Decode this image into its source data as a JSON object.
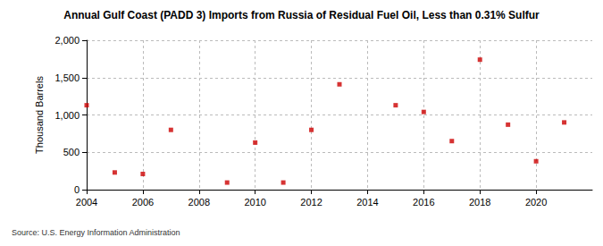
{
  "chart_data": {
    "type": "scatter",
    "title": "Annual Gulf Coast (PADD 3) Imports from Russia of Residual Fuel Oil, Less than 0.31% Sulfur",
    "y_label": "Thousand Barrels",
    "source": "Source: U.S. Energy Information Administration",
    "x": [
      2004,
      2005,
      2006,
      2007,
      2009,
      2010,
      2011,
      2012,
      2013,
      2015,
      2016,
      2017,
      2018,
      2019,
      2020,
      2021
    ],
    "values": [
      1130,
      230,
      210,
      800,
      95,
      630,
      95,
      800,
      1410,
      1130,
      1040,
      650,
      1740,
      870,
      380,
      900
    ],
    "color": "#cc0000",
    "marker": "square",
    "xlim": [
      2004,
      2022
    ],
    "xticks": [
      2004,
      2006,
      2008,
      2010,
      2012,
      2014,
      2016,
      2018,
      2020
    ],
    "ylim": [
      0,
      2000
    ],
    "yticks": [
      0,
      500,
      {
        "value": 1000,
        "label": "1,000"
      },
      {
        "value": 1500,
        "label": "1,500"
      },
      {
        "value": 2000,
        "label": "2,000"
      }
    ],
    "grid": true
  }
}
